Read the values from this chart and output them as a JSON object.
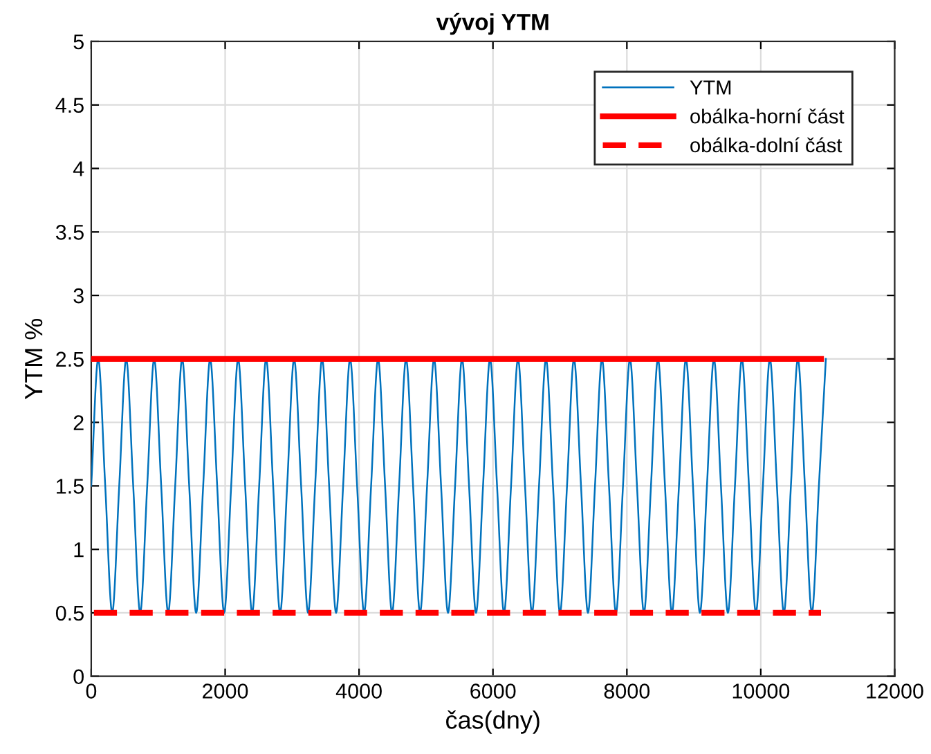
{
  "chart_data": {
    "type": "line",
    "title": "vývoj YTM",
    "xlabel": "čas(dny)",
    "ylabel": "YTM %",
    "xlim": [
      0,
      12000
    ],
    "xticks": [
      0,
      2000,
      4000,
      6000,
      8000,
      10000,
      12000
    ],
    "ylim": [
      0,
      5
    ],
    "yticks": [
      0,
      0.5,
      1,
      1.5,
      2,
      2.5,
      3,
      3.5,
      4,
      4.5,
      5
    ],
    "grid": true,
    "legend": "top right",
    "marker": "none",
    "series": [
      {
        "name": "YTM",
        "color": "#0072bd",
        "line_style": "solid",
        "x": [
          0,
          104,
          209,
          313,
          418,
          522,
          627,
          731,
          836,
          940,
          1045,
          1149,
          1254,
          1358,
          1463,
          1567,
          1672,
          1776,
          1881,
          1985,
          2090,
          2194,
          2299,
          2403,
          2508,
          2612,
          2717,
          2821,
          2926,
          3030,
          3135,
          3239,
          3344,
          3448,
          3553,
          3657,
          3762,
          3866,
          3971,
          4075,
          4180,
          4284,
          4389,
          4493,
          4598,
          4702,
          4807,
          4911,
          5016,
          5120,
          5225,
          5329,
          5434,
          5538,
          5643,
          5747,
          5852,
          5956,
          6061,
          6165,
          6270,
          6374,
          6479,
          6583,
          6688,
          6792,
          6897,
          7001,
          7106,
          7210,
          7315,
          7419,
          7524,
          7628,
          7733,
          7837,
          7942,
          8046,
          8151,
          8255,
          8360,
          8464,
          8569,
          8673,
          8778,
          8882,
          8987,
          9091,
          9196,
          9300,
          9405,
          9509,
          9614,
          9718,
          9823,
          9927,
          10032,
          10136,
          10241,
          10345,
          10450,
          10554,
          10659,
          10763,
          10868,
          10972
        ],
        "values": [
          1.5,
          2.5,
          1.5,
          0.5,
          1.5,
          2.5,
          1.5,
          0.5,
          1.5,
          2.5,
          1.5,
          0.5,
          1.5,
          2.5,
          1.5,
          0.5,
          1.5,
          2.5,
          1.5,
          0.5,
          1.5,
          2.5,
          1.5,
          0.5,
          1.5,
          2.5,
          1.5,
          0.5,
          1.5,
          2.5,
          1.5,
          0.5,
          1.5,
          2.5,
          1.5,
          0.5,
          1.5,
          2.5,
          1.5,
          0.5,
          1.5,
          2.5,
          1.5,
          0.5,
          1.5,
          2.5,
          1.5,
          0.5,
          1.5,
          2.5,
          1.5,
          0.5,
          1.5,
          2.5,
          1.5,
          0.5,
          1.5,
          2.5,
          1.5,
          0.5,
          1.5,
          2.5,
          1.5,
          0.5,
          1.5,
          2.5,
          1.5,
          0.5,
          1.5,
          2.5,
          1.5,
          0.5,
          1.5,
          2.5,
          1.5,
          0.5,
          1.5,
          2.5,
          1.5,
          0.5,
          1.5,
          2.5,
          1.5,
          0.5,
          1.5,
          2.5,
          1.5,
          0.5,
          1.5,
          2.5,
          1.5,
          0.5,
          1.5,
          2.5,
          1.5,
          0.5,
          1.5,
          2.5,
          1.5,
          0.5,
          1.5,
          2.5,
          1.5,
          0.5,
          1.5,
          2.5
        ]
      },
      {
        "name": "obálka-horní část",
        "color": "#ff0000",
        "line_style": "solid",
        "x": [
          40,
          10900
        ],
        "values": [
          2.5,
          2.5
        ]
      },
      {
        "name": "obálka-dolní část",
        "color": "#ff0000",
        "line_style": "dashed",
        "x": [
          40,
          10900
        ],
        "values": [
          0.5,
          0.5
        ]
      }
    ]
  }
}
